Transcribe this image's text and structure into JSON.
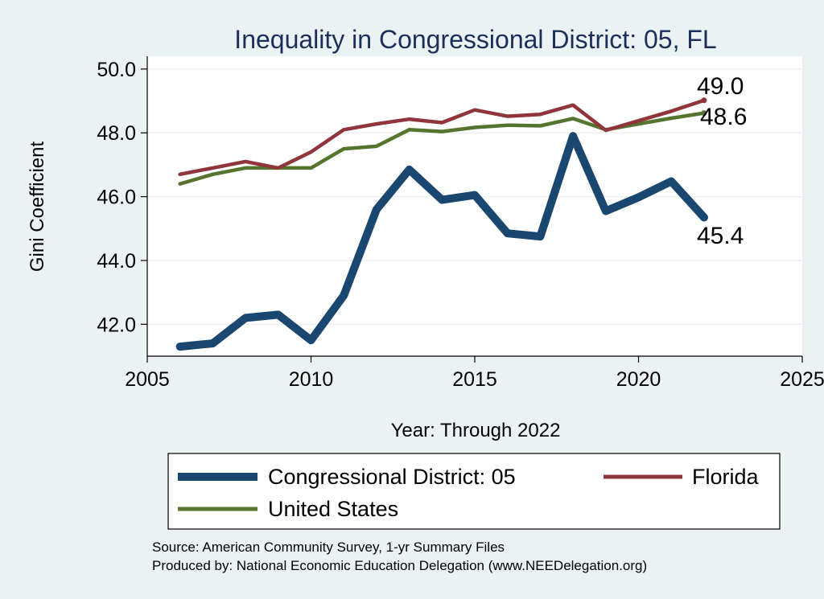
{
  "chart_data": {
    "type": "line",
    "title": "Inequality in Congressional District:  05, FL",
    "xlabel": "Year: Through 2022",
    "ylabel": "Gini Coefficient",
    "xlim": [
      2005,
      2025
    ],
    "ylim": [
      41.0,
      50.4
    ],
    "x_ticks": [
      2005,
      2010,
      2015,
      2020,
      2025
    ],
    "y_ticks": [
      42.0,
      44.0,
      46.0,
      48.0,
      50.0
    ],
    "grid": true,
    "legend_position": "bottom",
    "series": [
      {
        "name": "Congressional District:  05",
        "color": "#1a476f",
        "x": [
          2006,
          2007,
          2008,
          2009,
          2010,
          2011,
          2012,
          2013,
          2014,
          2015,
          2016,
          2017,
          2018,
          2019,
          2020,
          2021,
          2022
        ],
        "values": [
          41.3,
          41.4,
          42.2,
          42.3,
          41.5,
          42.9,
          45.6,
          46.85,
          45.9,
          46.05,
          44.85,
          44.75,
          47.9,
          45.55,
          45.98,
          46.48,
          45.35
        ],
        "end_label": "45.4"
      },
      {
        "name": "Florida",
        "color": "#90353b",
        "x": [
          2006,
          2007,
          2008,
          2009,
          2010,
          2011,
          2012,
          2013,
          2014,
          2015,
          2016,
          2017,
          2018,
          2019,
          2020,
          2021,
          2022
        ],
        "values": [
          46.7,
          46.9,
          47.1,
          46.9,
          47.4,
          48.1,
          48.28,
          48.43,
          48.32,
          48.72,
          48.52,
          48.58,
          48.87,
          48.08,
          48.38,
          48.68,
          49.02
        ],
        "end_label": "49.0"
      },
      {
        "name": "United States",
        "color": "#55752f",
        "x": [
          2006,
          2007,
          2008,
          2009,
          2010,
          2011,
          2012,
          2013,
          2014,
          2015,
          2016,
          2017,
          2018,
          2019,
          2020,
          2021,
          2022
        ],
        "values": [
          46.4,
          46.7,
          46.9,
          46.9,
          46.9,
          47.5,
          47.58,
          48.1,
          48.04,
          48.17,
          48.24,
          48.22,
          48.45,
          48.1,
          48.28,
          48.46,
          48.62
        ],
        "end_label": "48.6"
      }
    ],
    "footer": [
      "Source: American Community Survey, 1-yr Summary Files",
      "Produced by: National Economic Education Delegation (www.NEEDelegation.org)"
    ]
  }
}
